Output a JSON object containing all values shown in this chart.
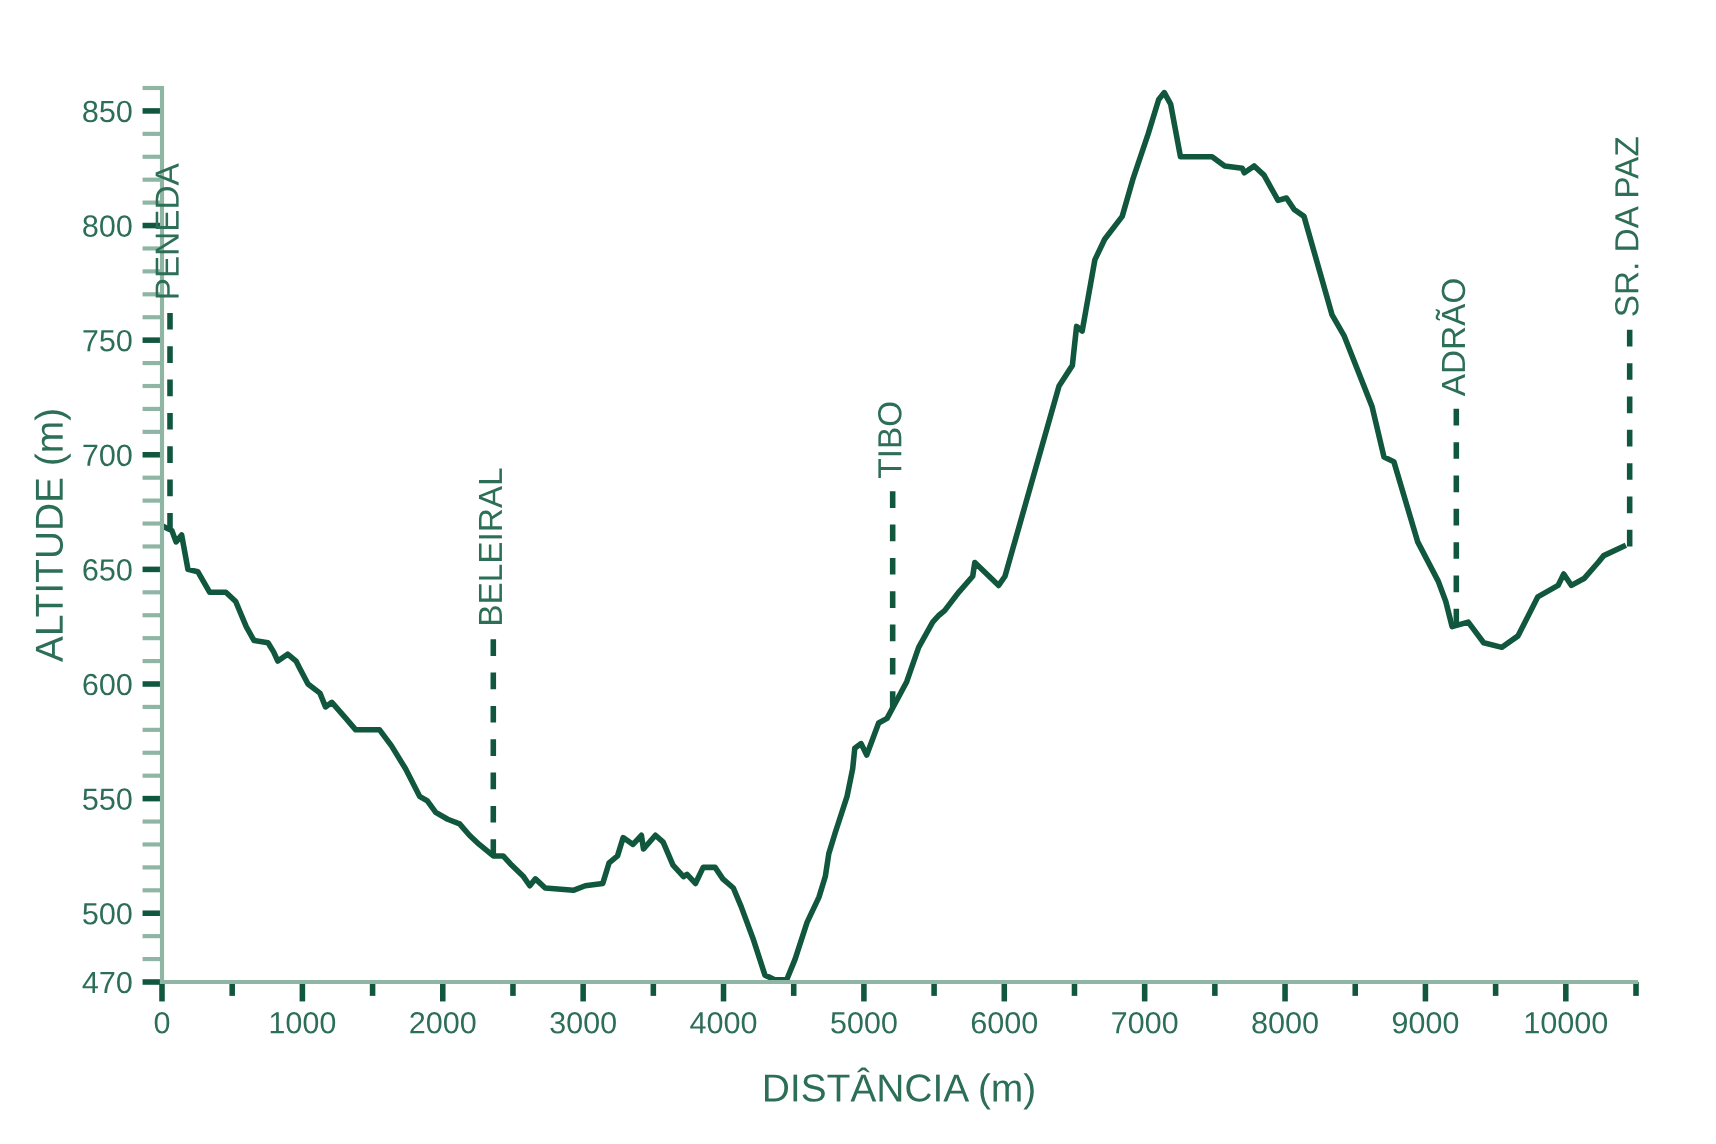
{
  "chart_data": {
    "type": "line",
    "xlabel": "DISTÂNCIA (m)",
    "ylabel": "ALTITUDE (m)",
    "xlim": [
      0,
      10500
    ],
    "ylim": [
      470,
      860
    ],
    "xticks": [
      0,
      {
        "value": 500,
        "label": null
      },
      1000,
      {
        "value": 1500,
        "label": null
      },
      2000,
      {
        "value": 2500,
        "label": null
      },
      3000,
      {
        "value": 3500,
        "label": null
      },
      4000,
      {
        "value": 4500,
        "label": null
      },
      5000,
      {
        "value": 5500,
        "label": null
      },
      6000,
      {
        "value": 6500,
        "label": null
      },
      7000,
      {
        "value": 7500,
        "label": null
      },
      8000,
      {
        "value": 8500,
        "label": null
      },
      9000,
      {
        "value": 9500,
        "label": null
      },
      10000,
      {
        "value": 10500,
        "label": null
      }
    ],
    "yticks": [
      470,
      {
        "value": 480,
        "label": null
      },
      {
        "value": 490,
        "label": null
      },
      500,
      {
        "value": 510,
        "label": null
      },
      {
        "value": 520,
        "label": null
      },
      {
        "value": 530,
        "label": null
      },
      {
        "value": 540,
        "label": null
      },
      550,
      {
        "value": 560,
        "label": null
      },
      {
        "value": 570,
        "label": null
      },
      {
        "value": 580,
        "label": null
      },
      {
        "value": 590,
        "label": null
      },
      600,
      {
        "value": 610,
        "label": null
      },
      {
        "value": 620,
        "label": null
      },
      {
        "value": 630,
        "label": null
      },
      {
        "value": 640,
        "label": null
      },
      650,
      {
        "value": 660,
        "label": null
      },
      {
        "value": 670,
        "label": null
      },
      {
        "value": 680,
        "label": null
      },
      {
        "value": 690,
        "label": null
      },
      700,
      {
        "value": 710,
        "label": null
      },
      {
        "value": 720,
        "label": null
      },
      {
        "value": 730,
        "label": null
      },
      {
        "value": 740,
        "label": null
      },
      750,
      {
        "value": 760,
        "label": null
      },
      {
        "value": 770,
        "label": null
      },
      {
        "value": 780,
        "label": null
      },
      {
        "value": 790,
        "label": null
      },
      800,
      {
        "value": 810,
        "label": null
      },
      {
        "value": 820,
        "label": null
      },
      {
        "value": 830,
        "label": null
      },
      {
        "value": 840,
        "label": null
      },
      850,
      {
        "value": 860,
        "label": null
      }
    ],
    "grid": false,
    "legend": false,
    "marker": "none",
    "line_style": "solid",
    "series": [
      {
        "color": "#10573e",
        "x": [
          0,
          70,
          100,
          140,
          185,
          255,
          340,
          455,
          525,
          600,
          655,
          755,
          795,
          825,
          895,
          955,
          980,
          1040,
          1125,
          1165,
          1210,
          1310,
          1380,
          1550,
          1635,
          1735,
          1835,
          1890,
          1950,
          2035,
          2120,
          2190,
          2260,
          2360,
          2430,
          2490,
          2575,
          2620,
          2660,
          2730,
          2930,
          3015,
          3140,
          3185,
          3245,
          3285,
          3355,
          3415,
          3430,
          3515,
          3570,
          3640,
          3715,
          3740,
          3800,
          3855,
          3940,
          3995,
          4070,
          4125,
          4210,
          4295,
          4365,
          4450,
          4510,
          4595,
          4680,
          4725,
          4750,
          4795,
          4880,
          4920,
          4935,
          4980,
          5020,
          5105,
          5165,
          5305,
          5390,
          5490,
          5535,
          5575,
          5675,
          5775,
          5790,
          5960,
          6005,
          6390,
          6485,
          6515,
          6555,
          6645,
          6715,
          6840,
          6915,
          7025,
          7100,
          7140,
          7185,
          7255,
          7480,
          7570,
          7695,
          7710,
          7780,
          7850,
          7950,
          8010,
          8065,
          8135,
          8335,
          8420,
          8620,
          8705,
          8775,
          8945,
          9090,
          9145,
          9190,
          9305,
          9415,
          9545,
          9660,
          9800,
          9945,
          9985,
          10040,
          10130,
          10230,
          10270,
          10410
        ],
        "values": [
          669,
          667,
          662,
          665,
          650,
          649,
          640,
          640,
          636,
          625,
          619,
          618,
          614,
          610,
          613,
          610,
          607,
          600,
          596,
          590,
          592,
          585,
          580,
          580,
          573,
          563,
          551,
          549,
          544,
          541,
          539,
          534,
          530,
          525,
          525,
          521,
          516,
          512,
          515,
          511,
          510,
          512,
          513,
          522,
          525,
          533,
          530,
          534,
          528,
          534,
          531,
          521,
          516,
          517,
          513,
          520,
          520,
          515,
          511,
          503,
          489,
          473,
          471,
          471,
          480,
          496,
          507,
          516,
          526,
          535,
          551,
          563,
          572,
          574,
          569,
          583,
          585,
          601,
          616,
          627,
          630,
          632,
          640,
          647,
          653,
          643,
          647,
          730,
          739,
          756,
          754,
          785,
          794,
          804,
          820,
          840,
          855,
          858,
          853,
          830,
          830,
          826,
          825,
          823,
          826,
          822,
          811,
          812,
          807,
          804,
          761,
          752,
          721,
          699,
          697,
          662,
          645,
          636,
          625,
          627,
          618,
          616,
          621,
          638,
          643,
          648,
          643,
          646,
          653,
          656,
          660
        ]
      }
    ],
    "ref_lines": [
      {
        "axis": "x",
        "value": 57,
        "label": "PENEDA",
        "line_style": "dashed"
      },
      {
        "axis": "x",
        "value": 2360,
        "label": "BELEIRAL",
        "line_style": "dashed"
      },
      {
        "axis": "x",
        "value": 5205,
        "label": "TIBO",
        "line_style": "dashed"
      },
      {
        "axis": "x",
        "value": 9220,
        "label": "ADRÃO",
        "line_style": "dashed"
      },
      {
        "axis": "x",
        "value": 10455,
        "label": "SR. DA PAZ",
        "line_style": "dashed"
      }
    ]
  }
}
